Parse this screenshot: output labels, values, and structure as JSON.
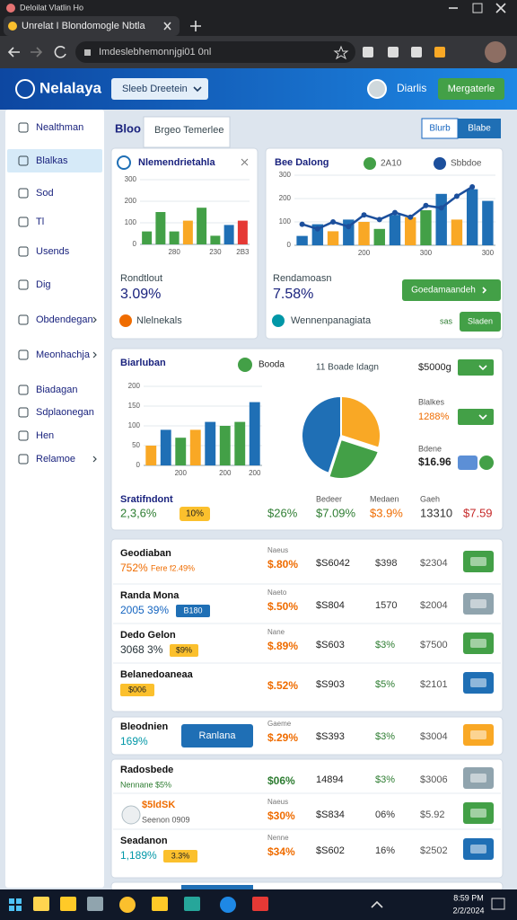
{
  "browser": {
    "window_title": "Deloilat Vlatlin Ho",
    "tab_title": "Unrelat I Blondomogle Nbtla",
    "url": "Imdeslebhemonnjgi01 0nl"
  },
  "header": {
    "brand": "Nelalaya",
    "search": "Sleeb Dreetein",
    "user": "Diarlis",
    "action": "Mergaterle"
  },
  "sidebar": [
    {
      "label": "Nealthman"
    },
    {
      "label": "Blalkas",
      "active": true
    },
    {
      "label": "Sod"
    },
    {
      "label": "Tl"
    },
    {
      "label": "Usends"
    },
    {
      "label": "Dig"
    },
    {
      "label": "Obdendegan",
      "submenu": true
    },
    {
      "label": "Meonhachja",
      "submenu": true
    },
    {
      "label": "Biadagan"
    },
    {
      "label": "Sdplaonegan"
    },
    {
      "label": "Hen"
    },
    {
      "label": "Relamoe",
      "submenu": true
    }
  ],
  "tabs": [
    "Bloo",
    "Brgeo Temerlee"
  ],
  "toggle": [
    "Blurb",
    "Blabe"
  ],
  "card1": {
    "title": "Nlemendrietahla",
    "metric_label": "Rondtlout",
    "metric": "3.09%",
    "footer": "Nlelnekals",
    "chart": {
      "type": "bar",
      "categories": [
        null,
        null,
        "280",
        null,
        null,
        "230",
        null,
        "2B3"
      ],
      "values": [
        60,
        150,
        60,
        110,
        170,
        40,
        90,
        110
      ],
      "colors": [
        "#43a047",
        "#43a047",
        "#43a047",
        "#f9a825",
        "#43a047",
        "#43a047",
        "#1f6fb5",
        "#e53935"
      ],
      "ylim": [
        0,
        300
      ],
      "yticks": [
        0,
        100,
        200,
        300
      ]
    }
  },
  "card2": {
    "title": "Bee Dalong",
    "metric_label": "Rendamoasn",
    "metric": "7.58%",
    "button": "Goedamaandeh",
    "footer": "Wennenpanagiata",
    "small": "sas",
    "small_button": "Sladen",
    "chart": {
      "type": "bar-line",
      "categories": [
        null,
        null,
        null,
        null,
        "200",
        null,
        null,
        null,
        "300",
        null,
        null,
        null,
        "300"
      ],
      "series": [
        {
          "name": "2A10",
          "color": "#43a047",
          "type": "bar",
          "values": [
            40,
            90,
            60,
            110,
            100,
            70,
            130,
            120,
            150,
            220,
            110,
            240,
            190
          ],
          "colors": [
            "#1f6fb5",
            "#1f6fb5",
            "#f9a825",
            "#1f6fb5",
            "#f9a825",
            "#43a047",
            "#1f6fb5",
            "#f9a825",
            "#43a047",
            "#1f6fb5",
            "#f9a825",
            "#1f6fb5",
            "#1f6fb5"
          ]
        },
        {
          "name": "Sbbdoe",
          "color": "#1c4f9c",
          "type": "line",
          "values": [
            90,
            70,
            100,
            80,
            130,
            110,
            140,
            120,
            170,
            160,
            210,
            250,
            null
          ]
        }
      ],
      "ylim": [
        0,
        300
      ],
      "yticks": [
        0,
        100,
        200,
        300
      ]
    }
  },
  "card3": {
    "title": "Biarluban",
    "chip": "Booda",
    "note": "11 Boade Idagn",
    "amount": "$5000g",
    "side_label": "Blalkes",
    "side_value": "1288%",
    "side_label2": "Bdene",
    "side_value2": "$16.96",
    "chart": {
      "type": "bar",
      "categories": [
        null,
        null,
        "200",
        null,
        null,
        "200",
        null,
        "200"
      ],
      "values": [
        50,
        90,
        70,
        90,
        110,
        100,
        110,
        160
      ],
      "colors": [
        "#f9a825",
        "#1f6fb5",
        "#43a047",
        "#f9a825",
        "#1f6fb5",
        "#43a047",
        "#43a047",
        "#1f6fb5"
      ],
      "ylim": [
        0,
        200
      ],
      "yticks": [
        0,
        50,
        100,
        150,
        200
      ]
    },
    "pie": {
      "type": "pie",
      "values": [
        45,
        30,
        25
      ],
      "colors": [
        "#1f6fb5",
        "#f9a825",
        "#43a047"
      ]
    },
    "summary": [
      {
        "label": "Sratifndont",
        "value": "2,3,6%",
        "color": "#2e7d32",
        "chip": "10%"
      },
      {
        "value": "$26%",
        "color": "#2e7d32"
      },
      {
        "label": "Bedeer",
        "value": "$7.09%",
        "color": "#2e7d32"
      },
      {
        "label": "Medaen",
        "value": "$3.9%",
        "color": "#ef6c00"
      },
      {
        "label": "Gaeh",
        "value": "13310",
        "color": "#333333"
      },
      {
        "value": "$7.59",
        "color": "#c62828"
      }
    ]
  },
  "lists": [
    [
      {
        "title": "Geodiaban",
        "sub": "752%",
        "sub_color": "#ef6c00",
        "sub2": "Fere f2.49%",
        "label": "Naeus",
        "pct": "$.80%",
        "pct_color": "#ef6c00",
        "v1": "$S6042",
        "v2": "$398",
        "v3": "$2304",
        "icon_color": "#43a047"
      },
      {
        "title": "Randa Mona",
        "sub": "2005 39%",
        "sub_color": "#1565c0",
        "chip": "B180",
        "chip_color": "#1f6fb5",
        "label": "Naeto",
        "pct": "$.50%",
        "pct_color": "#ef6c00",
        "v1": "$S804",
        "v2": "1570",
        "v3": "$2004",
        "icon_color": "#90a4ae"
      },
      {
        "title": "Dedo Gelon",
        "sub": "3068 3%",
        "sub_color": "#263238",
        "chip": "$9%",
        "chip_color": "#fbc02d",
        "label": "Nane",
        "pct": "$.89%",
        "pct_color": "#ef6c00",
        "v1": "$S603",
        "v2": "$3%",
        "v2_color": "#2e7d32",
        "v3": "$7500",
        "icon_color": "#43a047"
      },
      {
        "title": "Belanedoaneaa",
        "chip": "$006",
        "chip_color": "#fbc02d",
        "pct": "$.52%",
        "pct_color": "#ef6c00",
        "v1": "$S903",
        "v2": "$5%",
        "v2_color": "#2e7d32",
        "v3": "$2101",
        "icon_color": "#1f6fb5"
      }
    ],
    [
      {
        "title": "Bleodnien",
        "sub": "169%",
        "sub_color": "#0097a7",
        "button": "Ranlana",
        "label": "Gaeme",
        "pct": "$.29%",
        "pct_color": "#ef6c00",
        "v1": "$S393",
        "v2": "$3%",
        "v2_color": "#2e7d32",
        "v3": "$3004",
        "icon_color": "#f9a825"
      }
    ],
    [
      {
        "title": "Radosbede",
        "sub2": "Nennane $5%",
        "pct": "$06%",
        "pct_color": "#2e7d32",
        "v1": "14894",
        "v2": "$3%",
        "v2_color": "#2e7d32",
        "v3": "$3006",
        "icon_color": "#90a4ae"
      },
      {
        "title": "$5ldSK",
        "badge": true,
        "sub2": "Seenon 0909",
        "label": "Naeus",
        "pct": "$30%",
        "pct_color": "#ef6c00",
        "v1": "$S834",
        "v2": "06%",
        "v3": "$5.92",
        "icon_color": "#43a047"
      },
      {
        "title": "Seadanon",
        "sub": "1,189%",
        "sub_color": "#0097a7",
        "chip": "3.3%",
        "chip_color": "#fbc02d",
        "label": "Nenne",
        "pct": "$34%",
        "pct_color": "#ef6c00",
        "v1": "$S602",
        "v2": "16%",
        "v3": "$2502",
        "icon_color": "#1f6fb5"
      }
    ]
  ],
  "clock": {
    "time": "8:59 PM",
    "date": "2/2/2024"
  }
}
